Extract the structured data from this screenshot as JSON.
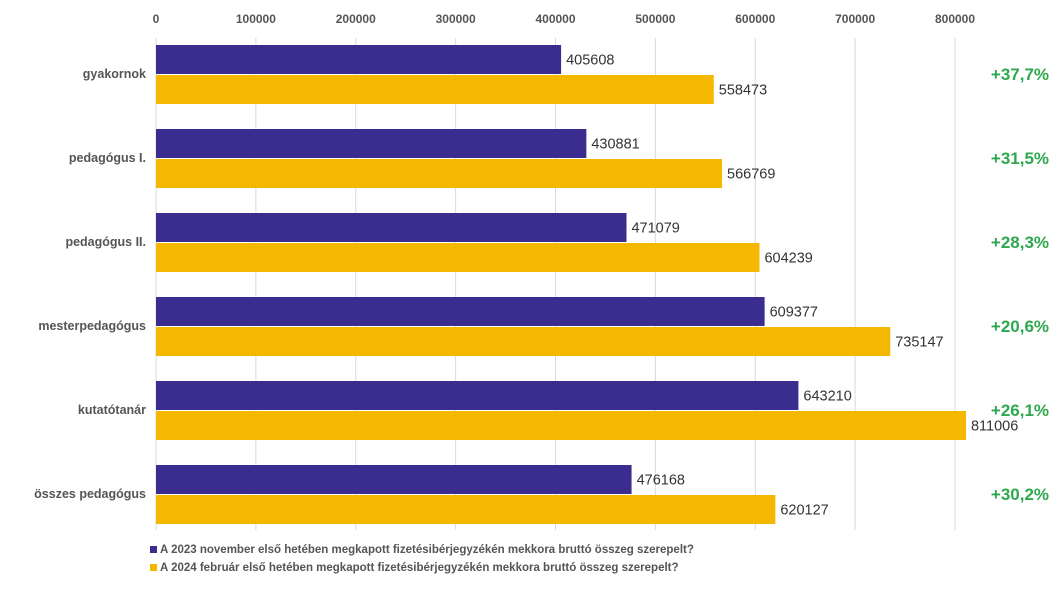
{
  "chart_data": {
    "type": "bar",
    "orientation": "horizontal",
    "categories": [
      "gyakornok",
      "pedagógus I.",
      "pedagógus II.",
      "mesterpedagógus",
      "kutatótanár",
      "összes pedagógus"
    ],
    "series": [
      {
        "name": "A 2023 november első hetében megkapott fizetésibérjegyzékén mekkora bruttó összeg szerepelt?",
        "color": "#3a2d8f",
        "values": [
          405608,
          430881,
          471079,
          609377,
          643210,
          476168
        ]
      },
      {
        "name": "A 2024 február első hetében megkapott fizetésibérjegyzékén mekkora bruttó összeg szerepelt?",
        "color": "#f5b800",
        "values": [
          558473,
          566769,
          604239,
          735147,
          811006,
          620127
        ]
      }
    ],
    "change_labels": [
      "+37,7%",
      "+31,5%",
      "+28,3%",
      "+20,6%",
      "+26,1%",
      "+30,2%"
    ],
    "change_color": "#2ea84f",
    "xlim": [
      0,
      800000
    ],
    "xticks": [
      0,
      100000,
      200000,
      300000,
      400000,
      500000,
      600000,
      700000,
      800000
    ],
    "x_axis_position": "top",
    "grid": true,
    "legend_position": "bottom-left",
    "title": "",
    "xlabel": "",
    "ylabel": ""
  }
}
